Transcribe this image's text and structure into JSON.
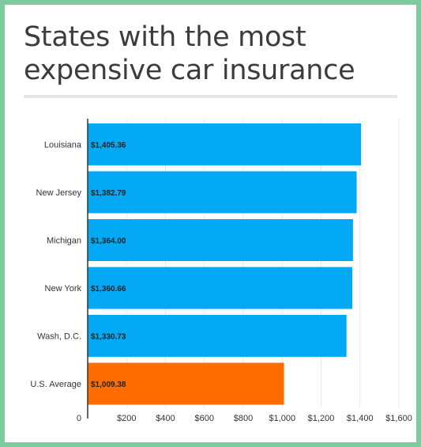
{
  "chart_data": {
    "type": "bar",
    "orientation": "horizontal",
    "title": "States with the most expensive car insurance",
    "categories": [
      "Louisiana",
      "New Jersey",
      "Michigan",
      "New York",
      "Wash, D.C.",
      "U.S. Average"
    ],
    "values": [
      1405.36,
      1382.79,
      1364.0,
      1360.66,
      1330.73,
      1009.38
    ],
    "value_labels": [
      "$1,405.36",
      "$1,382.79",
      "$1,364.00",
      "$1,360.66",
      "$1,330.73",
      "$1,009.38"
    ],
    "bar_colors": [
      "#03a9f4",
      "#03a9f4",
      "#03a9f4",
      "#03a9f4",
      "#03a9f4",
      "#ff6d00"
    ],
    "xlim": [
      0,
      1600
    ],
    "xticks": [
      0,
      200,
      400,
      600,
      800,
      1000,
      1200,
      1400,
      1600
    ],
    "xtick_labels": [
      "0",
      "$200",
      "$400",
      "$600",
      "$800",
      "$1,000",
      "$1,200",
      "$1,400",
      "$1,600"
    ],
    "grid": true,
    "xlabel": "",
    "ylabel": ""
  }
}
